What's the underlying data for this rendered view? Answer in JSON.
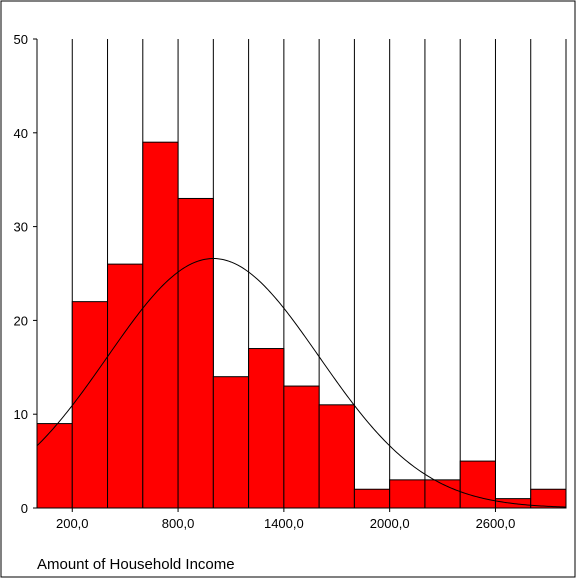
{
  "chart_data": {
    "type": "bar",
    "title": "",
    "xlabel": "Amount of Household Income",
    "ylabel": "",
    "bin_edges": [
      0,
      200,
      400,
      600,
      800,
      1000,
      1200,
      1400,
      1600,
      1800,
      2000,
      2200,
      2400,
      2600,
      2800,
      3000
    ],
    "values": [
      9,
      22,
      26,
      39,
      33,
      14,
      17,
      13,
      11,
      2,
      3,
      3,
      5,
      1,
      2
    ],
    "x_tick_values": [
      200,
      800,
      1400,
      2000,
      2600
    ],
    "x_tick_labels": [
      "200,0",
      "800,0",
      "1400,0",
      "2000,0",
      "2600,0"
    ],
    "y_tick_values": [
      0,
      10,
      20,
      30,
      40,
      50
    ],
    "y_tick_labels": [
      "0",
      "10",
      "20",
      "30",
      "40",
      "50"
    ],
    "xlim": [
      0,
      3000
    ],
    "ylim": [
      0,
      50
    ],
    "normal_curve": {
      "mean": 1000,
      "sd": 600,
      "n": 200,
      "bin_width": 200
    },
    "colors": {
      "bar_fill": "#ff0000",
      "bar_edge": "#000000",
      "curve": "#000000",
      "grid": "#000000"
    },
    "grid": true
  }
}
